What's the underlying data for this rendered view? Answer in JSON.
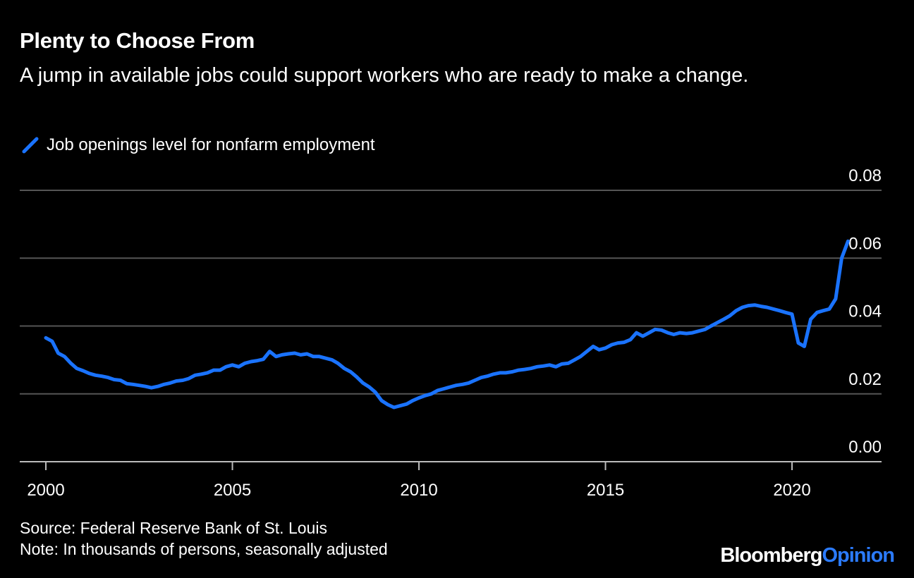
{
  "title": "Plenty to Choose From",
  "subtitle": "A jump in available jobs could support workers who are ready to make a change.",
  "source": "Source: Federal Reserve Bank of St. Louis",
  "note": "Note: In thousands of persons, seasonally adjusted",
  "brand": {
    "part1": "Bloomberg",
    "part2": "Opinion"
  },
  "colors": {
    "background": "#000000",
    "series": "#1a73ff",
    "grid": "#555555",
    "text": "#ffffff",
    "brand_accent": "#2b7bff"
  },
  "chart_data": {
    "type": "line",
    "title": "Plenty to Choose From",
    "legend_position": "top-left",
    "grid": true,
    "y_axis_side": "right",
    "xlim": [
      1999.3,
      2022.4
    ],
    "ylim": [
      0,
      0.08
    ],
    "x_ticks": [
      2000,
      2005,
      2010,
      2015,
      2020
    ],
    "x_tick_labels": [
      "2000",
      "2005",
      "2010",
      "2015",
      "2020"
    ],
    "y_ticks": [
      0,
      0.02,
      0.04,
      0.06,
      0.08
    ],
    "y_tick_labels": [
      "0.00",
      "0.02",
      "0.04",
      "0.06",
      "0.08"
    ],
    "series": [
      {
        "name": "Job openings level for nonfarm employment",
        "color": "#1a73ff",
        "x": [
          2000.0,
          2000.17,
          2000.33,
          2000.5,
          2000.67,
          2000.83,
          2001.0,
          2001.17,
          2001.33,
          2001.5,
          2001.67,
          2001.83,
          2002.0,
          2002.17,
          2002.33,
          2002.5,
          2002.67,
          2002.83,
          2003.0,
          2003.17,
          2003.33,
          2003.5,
          2003.67,
          2003.83,
          2004.0,
          2004.17,
          2004.33,
          2004.5,
          2004.67,
          2004.83,
          2005.0,
          2005.17,
          2005.33,
          2005.5,
          2005.67,
          2005.83,
          2006.0,
          2006.17,
          2006.33,
          2006.5,
          2006.67,
          2006.83,
          2007.0,
          2007.17,
          2007.33,
          2007.5,
          2007.67,
          2007.83,
          2008.0,
          2008.17,
          2008.33,
          2008.5,
          2008.67,
          2008.83,
          2009.0,
          2009.17,
          2009.33,
          2009.5,
          2009.67,
          2009.83,
          2010.0,
          2010.17,
          2010.33,
          2010.5,
          2010.67,
          2010.83,
          2011.0,
          2011.17,
          2011.33,
          2011.5,
          2011.67,
          2011.83,
          2012.0,
          2012.17,
          2012.33,
          2012.5,
          2012.67,
          2012.83,
          2013.0,
          2013.17,
          2013.33,
          2013.5,
          2013.67,
          2013.83,
          2014.0,
          2014.17,
          2014.33,
          2014.5,
          2014.67,
          2014.83,
          2015.0,
          2015.17,
          2015.33,
          2015.5,
          2015.67,
          2015.83,
          2016.0,
          2016.17,
          2016.33,
          2016.5,
          2016.67,
          2016.83,
          2017.0,
          2017.17,
          2017.33,
          2017.5,
          2017.67,
          2017.83,
          2018.0,
          2018.17,
          2018.33,
          2018.5,
          2018.67,
          2018.83,
          2019.0,
          2019.17,
          2019.33,
          2019.5,
          2019.67,
          2019.83,
          2020.0,
          2020.17,
          2020.33,
          2020.5,
          2020.67,
          2020.83,
          2021.0,
          2021.17,
          2021.33,
          2021.5
        ],
        "values": [
          0.0365,
          0.0355,
          0.032,
          0.031,
          0.029,
          0.0275,
          0.0268,
          0.026,
          0.0255,
          0.0252,
          0.0248,
          0.0242,
          0.024,
          0.023,
          0.0228,
          0.0225,
          0.0222,
          0.0218,
          0.0222,
          0.0228,
          0.0232,
          0.0238,
          0.024,
          0.0245,
          0.0255,
          0.0258,
          0.0262,
          0.027,
          0.027,
          0.028,
          0.0285,
          0.028,
          0.029,
          0.0295,
          0.0298,
          0.0302,
          0.0325,
          0.031,
          0.0315,
          0.0318,
          0.032,
          0.0315,
          0.0318,
          0.031,
          0.031,
          0.0305,
          0.03,
          0.029,
          0.0275,
          0.0265,
          0.025,
          0.0232,
          0.022,
          0.0205,
          0.018,
          0.0168,
          0.016,
          0.0165,
          0.017,
          0.018,
          0.0188,
          0.0195,
          0.02,
          0.021,
          0.0215,
          0.022,
          0.0225,
          0.0228,
          0.0232,
          0.024,
          0.0248,
          0.0252,
          0.0258,
          0.0262,
          0.0262,
          0.0265,
          0.027,
          0.0272,
          0.0275,
          0.028,
          0.0282,
          0.0285,
          0.028,
          0.0288,
          0.029,
          0.03,
          0.031,
          0.0325,
          0.034,
          0.033,
          0.0335,
          0.0345,
          0.035,
          0.0352,
          0.036,
          0.038,
          0.037,
          0.038,
          0.039,
          0.0388,
          0.038,
          0.0375,
          0.038,
          0.0378,
          0.038,
          0.0385,
          0.039,
          0.04,
          0.041,
          0.042,
          0.043,
          0.0445,
          0.0455,
          0.046,
          0.0462,
          0.0458,
          0.0455,
          0.045,
          0.0445,
          0.044,
          0.0435,
          0.035,
          0.034,
          0.042,
          0.044,
          0.0445,
          0.045,
          0.048,
          0.06,
          0.065
        ]
      }
    ]
  }
}
